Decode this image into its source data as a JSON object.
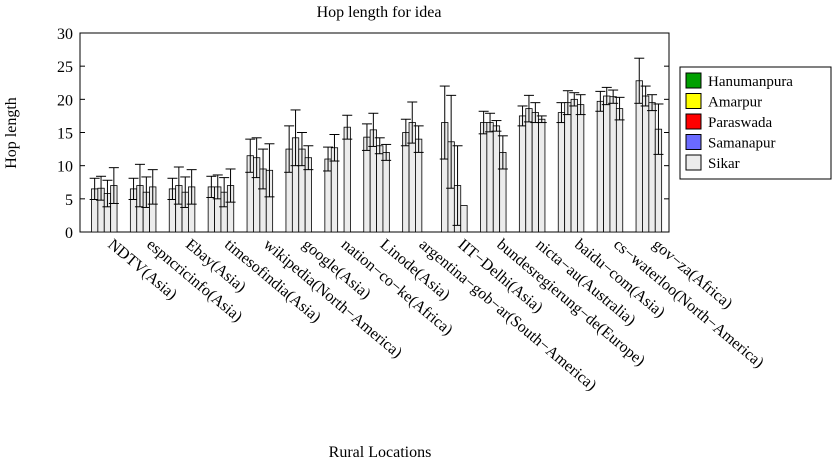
{
  "chart_data": {
    "type": "bar",
    "title": "Hop length for idea",
    "xlabel": "Rural Locations",
    "ylabel": "Hop length",
    "ylim": [
      0,
      30
    ],
    "yticks": [
      0,
      5,
      10,
      15,
      20,
      25,
      30
    ],
    "grid": false,
    "legend_position": "right",
    "categories": [
      "NDTV(Asia)",
      "espncricinfo(Asia)",
      "Ebay(Asia)",
      "timesofindia(Asia)",
      "wikipedia(North−America)",
      "google(Asia)",
      "nation−co−ke(Africa)",
      "Linode(Asia)",
      "argentina−gob−ar(South−America)",
      "IIT−Delhi(Asia)",
      "bundesregierung−de(Europe)",
      "nicta−au(Australia)",
      "baidu−com(Asia)",
      "cs−waterloo(North−America)",
      "gov−za(Africa)"
    ],
    "series": [
      {
        "name": "Hanumanpura",
        "color": "#00a000",
        "values": [
          6.5,
          6.5,
          6.5,
          6.8,
          11.5,
          12.5,
          11.0,
          14.3,
          15.0,
          16.5,
          16.5,
          17.5,
          18.0,
          19.7,
          22.8
        ],
        "err": [
          1.6,
          1.6,
          1.6,
          1.6,
          2.5,
          3.5,
          1.8,
          2.0,
          2.0,
          5.5,
          1.7,
          1.5,
          1.5,
          1.5,
          3.4
        ]
      },
      {
        "name": "Amarpur",
        "color": "#ffff00",
        "values": [
          6.6,
          7.0,
          7.0,
          6.8,
          11.2,
          14.2,
          12.7,
          15.4,
          16.5,
          13.6,
          16.5,
          18.6,
          19.5,
          20.5,
          20.5
        ],
        "err": [
          1.8,
          3.2,
          2.8,
          1.8,
          3.0,
          4.2,
          2.0,
          2.5,
          3.1,
          7.0,
          1.4,
          2.0,
          1.8,
          1.3,
          1.5
        ]
      },
      {
        "name": "Paraswada",
        "color": "#ff0000",
        "values": [
          5.8,
          6.0,
          6.0,
          6.0,
          9.5,
          12.5,
          0,
          13.0,
          14.0,
          7.0,
          16.0,
          18.0,
          20.0,
          20.4,
          19.5
        ],
        "err": [
          2.0,
          2.3,
          2.3,
          2.2,
          3.0,
          2.5,
          0,
          1.2,
          2.0,
          6.0,
          0.8,
          1.5,
          1.0,
          1.0,
          1.2
        ]
      },
      {
        "name": "Samanapur",
        "color": "#6a6aff",
        "values": [
          7.0,
          6.8,
          6.8,
          7.0,
          9.3,
          11.2,
          15.8,
          12.0,
          0,
          4.0,
          12.0,
          17.0,
          19.2,
          18.6,
          15.5
        ],
        "err": [
          2.7,
          2.6,
          2.6,
          2.5,
          4.0,
          1.8,
          1.8,
          1.2,
          0,
          0,
          2.5,
          0.5,
          1.5,
          1.7,
          3.8
        ]
      },
      {
        "name": "Sikar",
        "color": "#ececec",
        "values": [
          0,
          0,
          0,
          0,
          0,
          0,
          0,
          0,
          0,
          0,
          0,
          0,
          0,
          0,
          0
        ],
        "err": [
          0,
          0,
          0,
          0,
          0,
          0,
          0,
          0,
          0,
          0,
          0,
          0,
          0,
          0,
          0
        ]
      }
    ]
  }
}
